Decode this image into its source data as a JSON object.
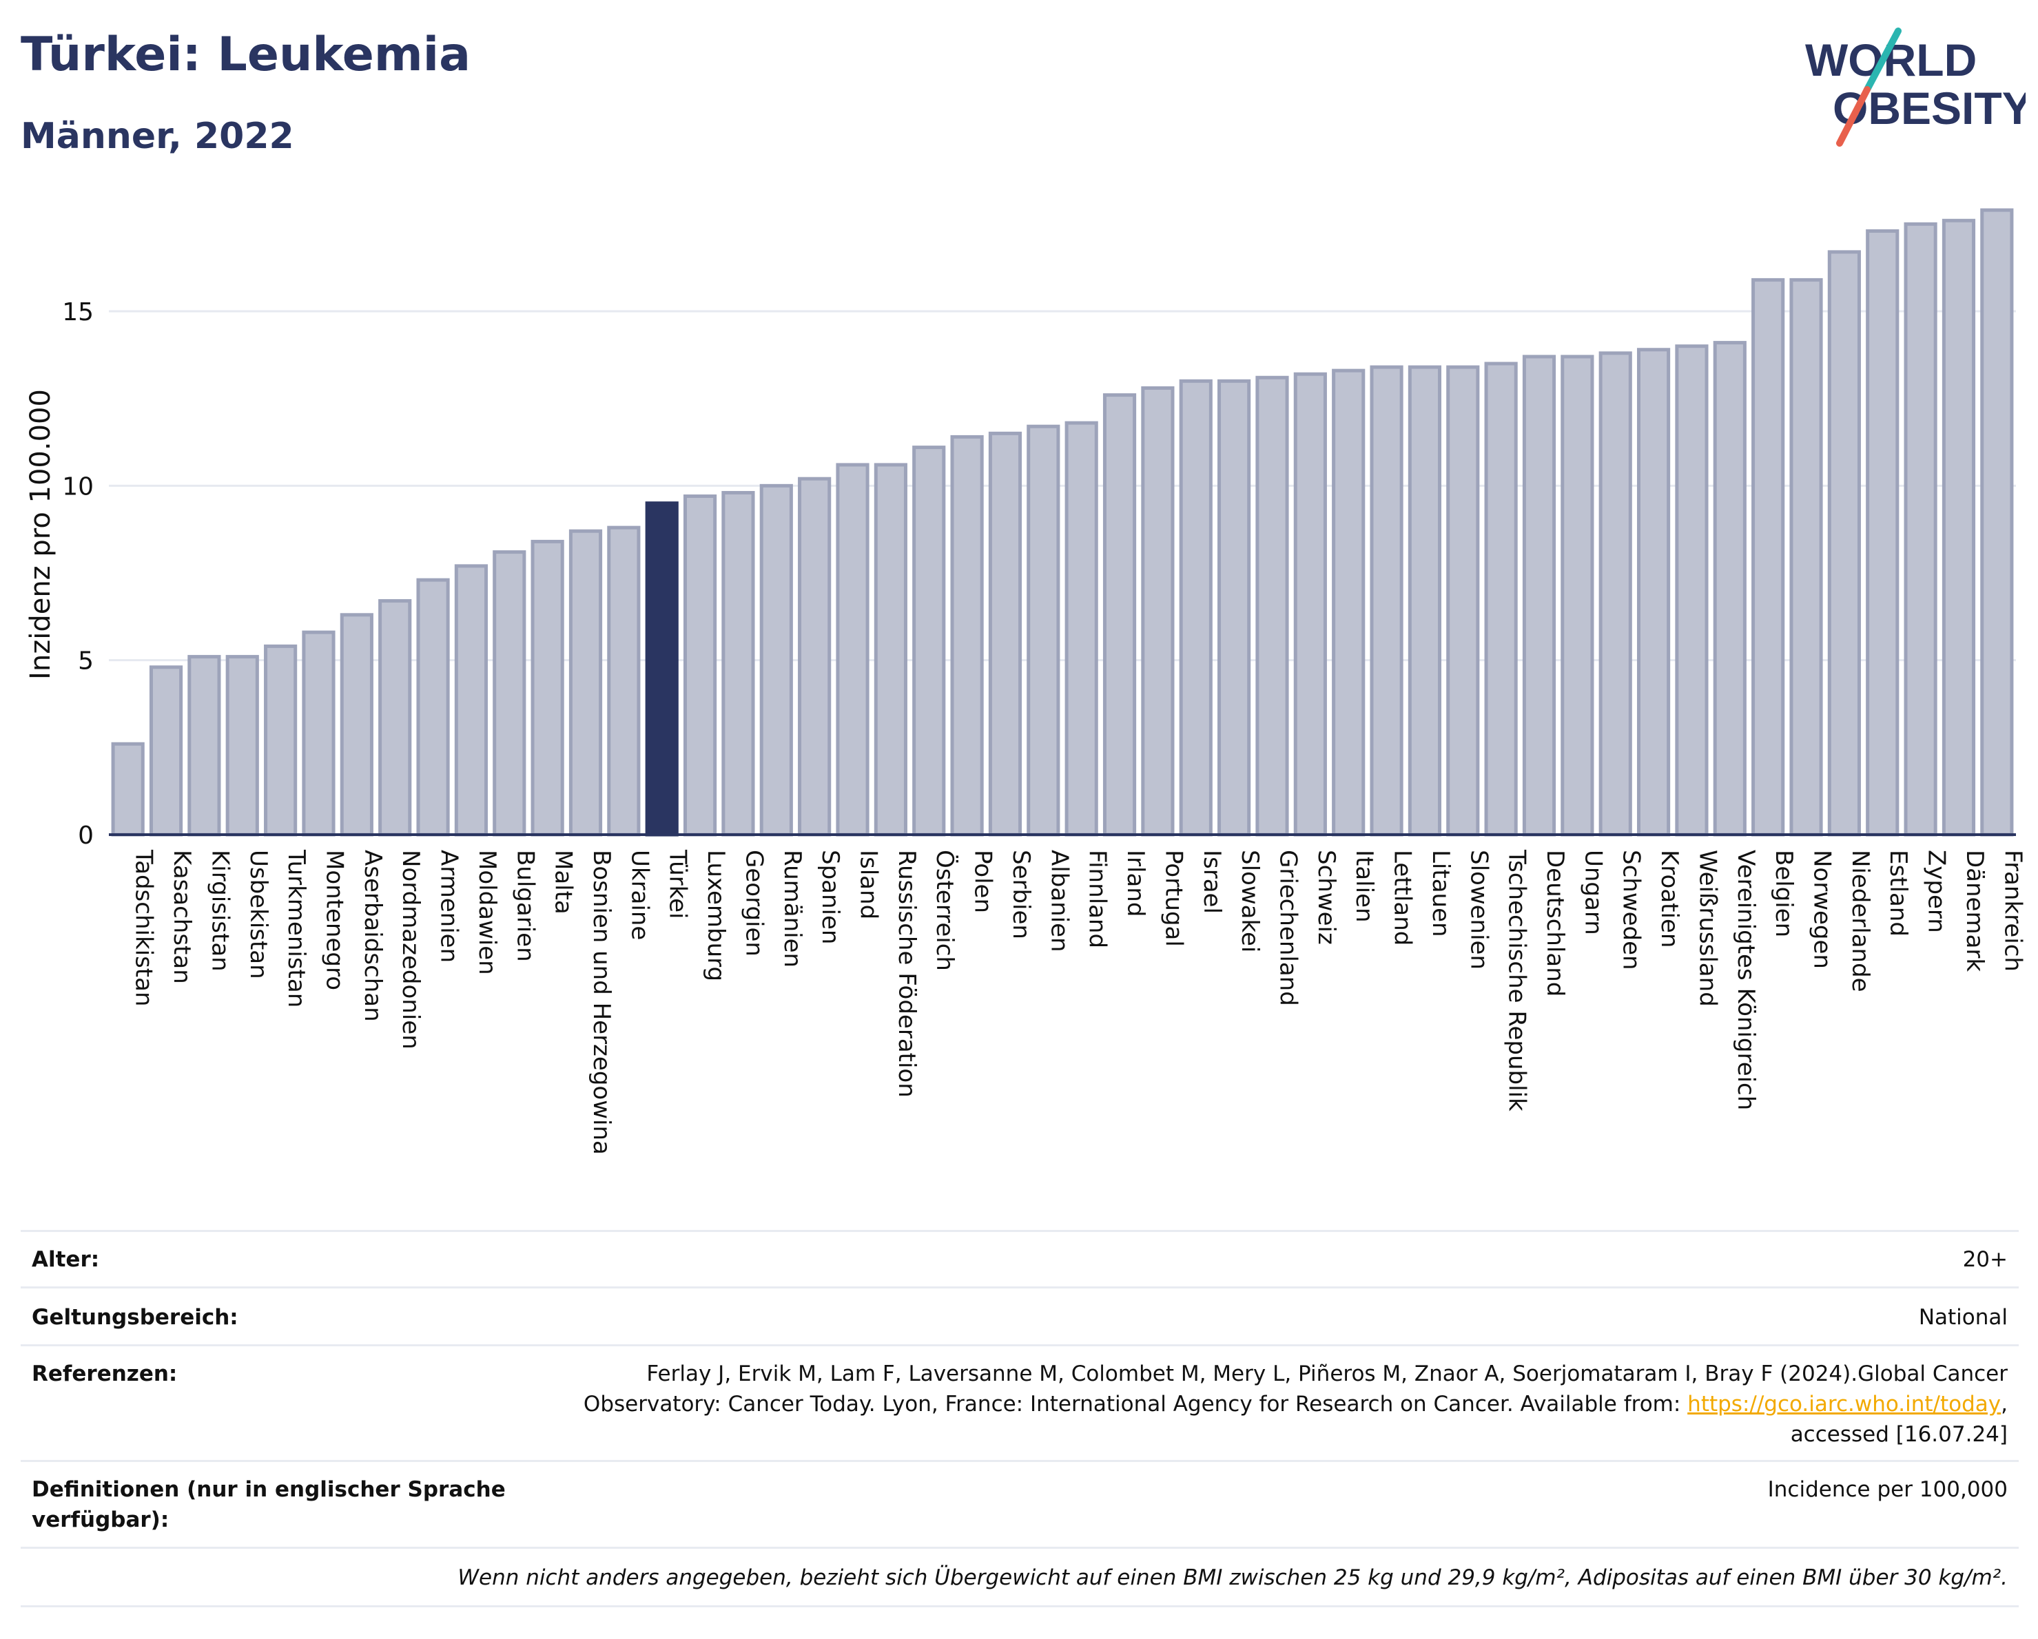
{
  "header": {
    "title": "Türkei: Leukemia",
    "subtitle": "Männer, 2022",
    "logo_line1": "WORLD",
    "logo_line2": "OBESITY"
  },
  "chart_data": {
    "type": "bar",
    "ylabel": "Inzidenz pro 100.000",
    "ylim": [
      0,
      18
    ],
    "yticks": [
      "0",
      "5",
      "10",
      "15"
    ],
    "highlight": "Türkei",
    "colors": {
      "bar": "#bec2d1",
      "bar_edge": "#9da3ba",
      "highlight": "#2a3561",
      "grid": "#e6e9f0",
      "axis": "#2a3561"
    },
    "categories": [
      "Tadschikistan",
      "Kasachstan",
      "Kirgisistan",
      "Usbekistan",
      "Turkmenistan",
      "Montenegro",
      "Aserbaidschan",
      "Nordmazedonien",
      "Armenien",
      "Moldawien",
      "Bulgarien",
      "Malta",
      "Bosnien und Herzegowina",
      "Ukraine",
      "Türkei",
      "Luxemburg",
      "Georgien",
      "Rumänien",
      "Spanien",
      "Island",
      "Russische Föderation",
      "Österreich",
      "Polen",
      "Serbien",
      "Albanien",
      "Finnland",
      "Irland",
      "Portugal",
      "Israel",
      "Slowakei",
      "Griechenland",
      "Schweiz",
      "Italien",
      "Lettland",
      "Litauen",
      "Slowenien",
      "Tschechische Republik",
      "Deutschland",
      "Ungarn",
      "Schweden",
      "Kroatien",
      "Weißrussland",
      "Vereinigtes Königreich",
      "Belgien",
      "Norwegen",
      "Niederlande",
      "Estland",
      "Zypern",
      "Dänemark",
      "Frankreich"
    ],
    "values": [
      2.6,
      4.8,
      5.1,
      5.1,
      5.4,
      5.8,
      6.3,
      6.7,
      7.3,
      7.7,
      8.1,
      8.4,
      8.7,
      8.8,
      9.5,
      9.7,
      9.8,
      10.0,
      10.2,
      10.6,
      10.6,
      11.1,
      11.4,
      11.5,
      11.7,
      11.8,
      12.6,
      12.8,
      13.0,
      13.0,
      13.1,
      13.2,
      13.3,
      13.4,
      13.4,
      13.4,
      13.5,
      13.7,
      13.7,
      13.8,
      13.9,
      14.0,
      14.1,
      15.9,
      15.9,
      16.7,
      17.3,
      17.5,
      17.6,
      17.9
    ]
  },
  "info": {
    "age_label": "Alter:",
    "age_value": "20+",
    "scope_label": "Geltungsbereich:",
    "scope_value": "National",
    "ref_label": "Referenzen:",
    "ref_line1": "Ferlay J, Ervik M, Lam F, Laversanne M, Colombet M, Mery L, Piñeros M, Znaor A, Soerjomataram I, Bray F (2024).Global Cancer",
    "ref_line2a": "Observatory: Cancer Today. Lyon, France: International Agency for Research on Cancer. Available from: ",
    "ref_link": "https://gco.iarc.who.int/today",
    "ref_line2b": ",",
    "ref_line3": "accessed [16.07.24]",
    "def_label_line1": "Definitionen (nur in englischer Sprache",
    "def_label_line2": "verfügbar):",
    "def_value": "Incidence per 100,000",
    "note": "Wenn nicht anders angegeben, bezieht sich Übergewicht auf einen BMI zwischen 25 kg und 29,9 kg/m², Adipositas auf einen BMI über 30 kg/m²."
  }
}
